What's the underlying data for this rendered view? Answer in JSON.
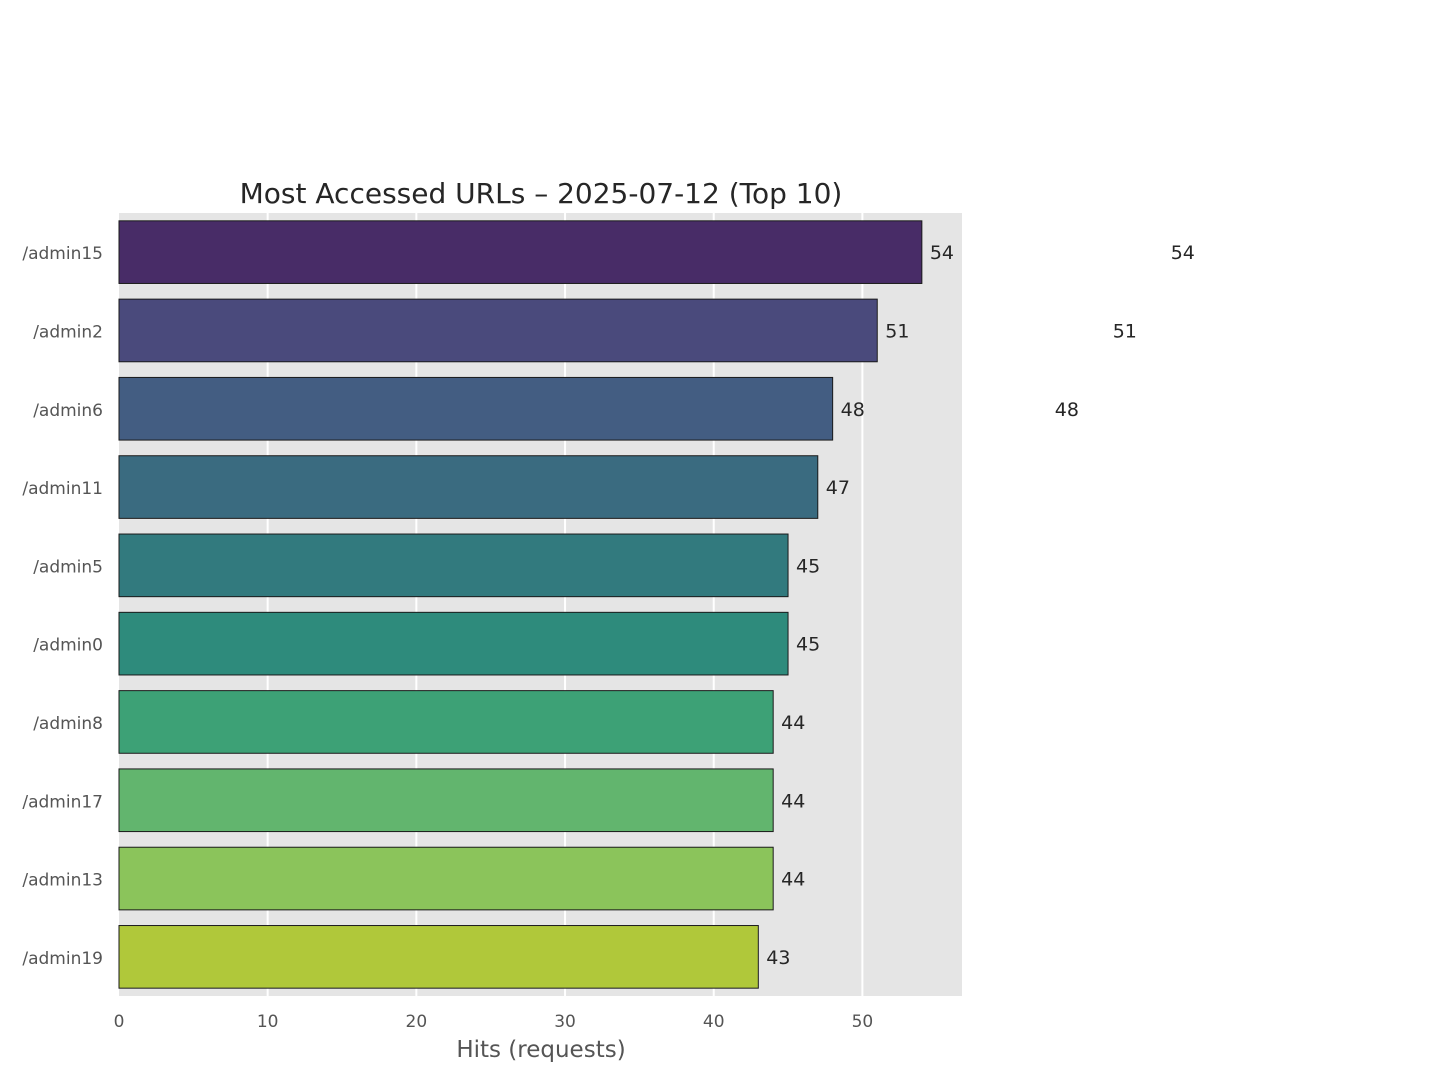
{
  "chart_data": {
    "type": "bar",
    "orientation": "horizontal",
    "title": "Most Accessed URLs – 2025-07-12 (Top 10)",
    "xlabel": "Hits (requests)",
    "ylabel": "",
    "xlim": [
      0,
      56.7
    ],
    "xticks": [
      0,
      10,
      20,
      30,
      40,
      50
    ],
    "grid": true,
    "categories": [
      "/admin15",
      "/admin2",
      "/admin6",
      "/admin11",
      "/admin5",
      "/admin0",
      "/admin8",
      "/admin17",
      "/admin13",
      "/admin19"
    ],
    "values": [
      54,
      51,
      48,
      47,
      45,
      45,
      44,
      44,
      44,
      43
    ],
    "colors": [
      "#482c67",
      "#4a4a7c",
      "#435d82",
      "#3a6b80",
      "#327a7e",
      "#2e8b7c",
      "#3da176",
      "#62b56e",
      "#8bc45b",
      "#b0c83a"
    ],
    "stray_labels": [
      {
        "text": "54",
        "category": "/admin15"
      },
      {
        "text": "51",
        "category": "/admin2"
      },
      {
        "text": "48",
        "category": "/admin6"
      }
    ]
  }
}
